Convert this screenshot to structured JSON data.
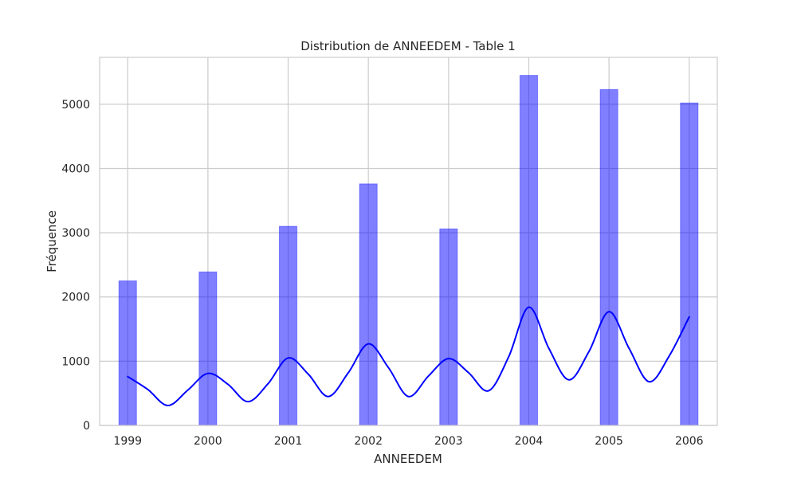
{
  "chart_data": {
    "type": "bar",
    "title": "Distribution de ANNEEDEM - Table 1",
    "xlabel": "ANNEEDEM",
    "ylabel": "Fréquence",
    "x_ticks": [
      "1999",
      "2000",
      "2001",
      "2002",
      "2003",
      "2004",
      "2005",
      "2006"
    ],
    "y_ticks": [
      "0",
      "1000",
      "2000",
      "3000",
      "4000",
      "5000"
    ],
    "xlim": [
      1998.65,
      2006.35
    ],
    "ylim": [
      0,
      5730
    ],
    "grid": true,
    "bar_color": "#0000ff",
    "bar_opacity": 0.5,
    "bars": [
      {
        "x": 1999,
        "value": 2250
      },
      {
        "x": 2000,
        "value": 2390
      },
      {
        "x": 2001,
        "value": 3100
      },
      {
        "x": 2002,
        "value": 3760
      },
      {
        "x": 2003,
        "value": 3060
      },
      {
        "x": 2004,
        "value": 5450
      },
      {
        "x": 2005,
        "value": 5230
      },
      {
        "x": 2006,
        "value": 5020
      }
    ],
    "series": [
      {
        "type": "line",
        "color": "#0000ff",
        "x": [
          1999.0,
          1999.25,
          1999.5,
          1999.75,
          2000.0,
          2000.25,
          2000.5,
          2000.75,
          2001.0,
          2001.25,
          2001.5,
          2001.75,
          2002.0,
          2002.25,
          2002.5,
          2002.75,
          2003.0,
          2003.25,
          2003.5,
          2003.75,
          2004.0,
          2004.25,
          2004.5,
          2004.75,
          2005.0,
          2005.25,
          2005.5,
          2005.75,
          2006.0
        ],
        "y": [
          760,
          560,
          310,
          550,
          810,
          640,
          370,
          650,
          1050,
          800,
          450,
          820,
          1270,
          900,
          450,
          770,
          1040,
          820,
          540,
          1070,
          1840,
          1200,
          710,
          1150,
          1770,
          1200,
          680,
          1080,
          1690
        ]
      }
    ]
  }
}
